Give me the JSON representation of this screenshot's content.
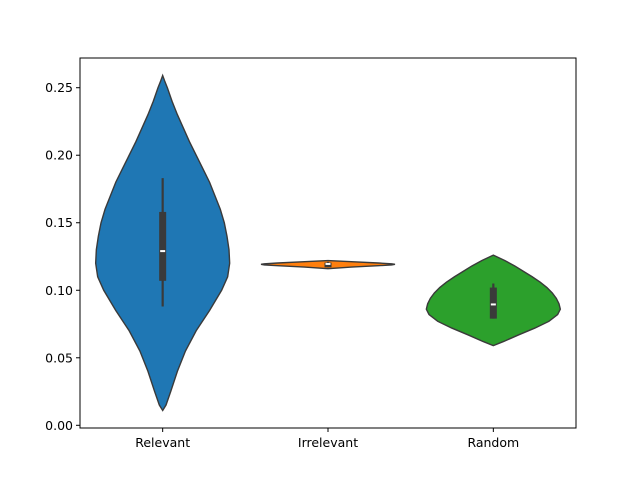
{
  "chart_data": {
    "type": "violin",
    "title": "",
    "xlabel": "",
    "ylabel": "",
    "ylim": [
      -0.002,
      0.272
    ],
    "yticks": [
      0.0,
      0.05,
      0.1,
      0.15,
      0.2,
      0.25
    ],
    "ytick_labels": [
      "0.00",
      "0.05",
      "0.10",
      "0.15",
      "0.20",
      "0.25"
    ],
    "grid": false,
    "categories": [
      "Relevant",
      "Irrelevant",
      "Random"
    ],
    "series": [
      {
        "category": "Relevant",
        "color": "#1f77b4",
        "min": 0.011,
        "max": 0.259,
        "whisker_low": 0.088,
        "q1": 0.107,
        "median": 0.129,
        "q3": 0.158,
        "whisker_high": 0.183,
        "density": [
          [
            0.011,
            0.0
          ],
          [
            0.015,
            0.05
          ],
          [
            0.025,
            0.12
          ],
          [
            0.04,
            0.22
          ],
          [
            0.055,
            0.34
          ],
          [
            0.07,
            0.5
          ],
          [
            0.085,
            0.7
          ],
          [
            0.1,
            0.88
          ],
          [
            0.11,
            0.97
          ],
          [
            0.12,
            1.0
          ],
          [
            0.13,
            0.99
          ],
          [
            0.14,
            0.96
          ],
          [
            0.15,
            0.92
          ],
          [
            0.16,
            0.86
          ],
          [
            0.17,
            0.78
          ],
          [
            0.18,
            0.7
          ],
          [
            0.19,
            0.6
          ],
          [
            0.2,
            0.5
          ],
          [
            0.21,
            0.4
          ],
          [
            0.22,
            0.31
          ],
          [
            0.23,
            0.22
          ],
          [
            0.24,
            0.14
          ],
          [
            0.25,
            0.07
          ],
          [
            0.255,
            0.03
          ],
          [
            0.259,
            0.0
          ]
        ]
      },
      {
        "category": "Irrelevant",
        "color": "#ff7f0e",
        "min": 0.116,
        "max": 0.122,
        "whisker_low": 0.117,
        "q1": 0.117,
        "median": 0.1195,
        "q3": 0.1205,
        "whisker_high": 0.121,
        "density": [
          [
            0.116,
            0.0
          ],
          [
            0.1172,
            0.35
          ],
          [
            0.1182,
            0.75
          ],
          [
            0.1188,
            0.95
          ],
          [
            0.1192,
            1.0
          ],
          [
            0.1196,
            0.95
          ],
          [
            0.1202,
            0.75
          ],
          [
            0.1212,
            0.35
          ],
          [
            0.122,
            0.0
          ]
        ]
      },
      {
        "category": "Random",
        "color": "#2ca02c",
        "min": 0.059,
        "max": 0.126,
        "whisker_low": 0.079,
        "q1": 0.079,
        "median": 0.0895,
        "q3": 0.102,
        "whisker_high": 0.105,
        "density": [
          [
            0.059,
            0.0
          ],
          [
            0.062,
            0.15
          ],
          [
            0.067,
            0.38
          ],
          [
            0.072,
            0.62
          ],
          [
            0.077,
            0.83
          ],
          [
            0.082,
            0.96
          ],
          [
            0.086,
            1.0
          ],
          [
            0.09,
            0.98
          ],
          [
            0.094,
            0.94
          ],
          [
            0.098,
            0.88
          ],
          [
            0.102,
            0.8
          ],
          [
            0.106,
            0.7
          ],
          [
            0.11,
            0.58
          ],
          [
            0.114,
            0.45
          ],
          [
            0.118,
            0.32
          ],
          [
            0.122,
            0.17
          ],
          [
            0.126,
            0.0
          ]
        ]
      }
    ]
  }
}
